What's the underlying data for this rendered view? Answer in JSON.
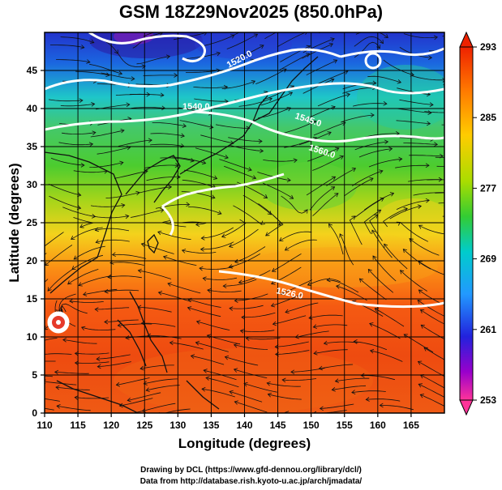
{
  "title": "GSM 18Z29Nov2025 (850.0hPa)",
  "axes": {
    "xlabel": "Longitude (degrees)",
    "ylabel": "Latitude  (degrees)",
    "x_ticks": [
      "110",
      "115",
      "120",
      "125",
      "130",
      "135",
      "140",
      "145",
      "150",
      "155",
      "160",
      "165"
    ],
    "y_ticks": [
      "0",
      "5",
      "10",
      "15",
      "20",
      "25",
      "30",
      "35",
      "40",
      "45"
    ],
    "x_range": [
      110,
      170
    ],
    "y_range": [
      0,
      50
    ]
  },
  "colorbar": {
    "labels": [
      "293",
      "285",
      "277",
      "269",
      "261",
      "253"
    ],
    "range": [
      253,
      293
    ],
    "colors": [
      "#ff3399",
      "#9900cc",
      "#2222dd",
      "#2299ff",
      "#00cccc",
      "#33cc33",
      "#99dd00",
      "#ffdd00",
      "#ff9900",
      "#ff5500",
      "#ee3300"
    ]
  },
  "contour_labels": [
    "1520.0",
    "1540.0",
    "1545.0",
    "1560.0",
    "1526.0"
  ],
  "credits": {
    "line1": "Drawing by DCL (https://www.gfd-dennou.org/library/dcl/)",
    "line2": "Data from http://database.rish.kyoto-u.ac.jp/arch/jmadata/"
  },
  "icons": [
    "colorbar-arrow-up-icon",
    "colorbar-arrow-down-icon",
    "typhoon-low-icon"
  ]
}
